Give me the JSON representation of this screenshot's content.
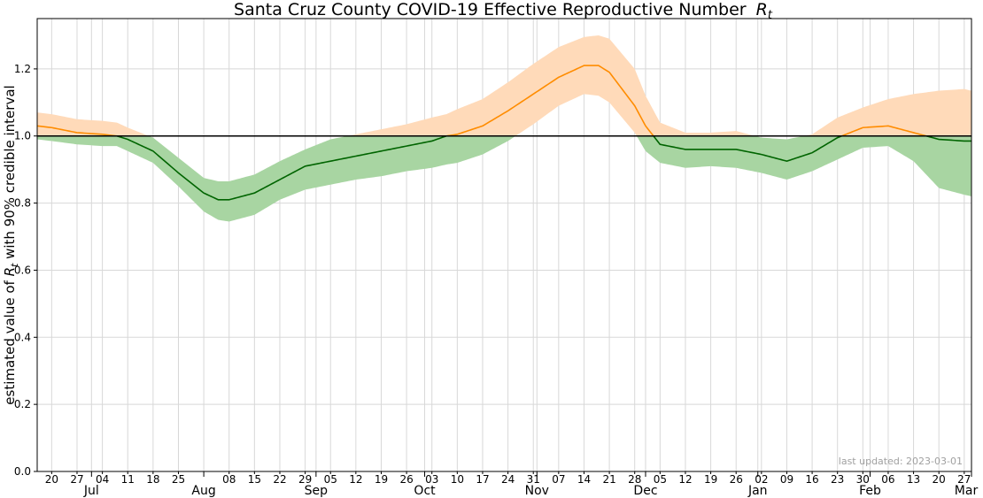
{
  "chart_data": {
    "type": "line",
    "title": "Santa Cruz County COVID-19 Effective Reproductive Number",
    "title_symbol": "R",
    "title_subscript": "t",
    "ylabel_prefix": "estimated value of ",
    "ylabel_symbol": "R",
    "ylabel_subscript": "t",
    "ylabel_suffix": " with 90% credible interval",
    "xlabel": "",
    "ylim": [
      0,
      1.35
    ],
    "yticks": [
      0.0,
      0.2,
      0.4,
      0.6,
      0.8,
      1.0,
      1.2
    ],
    "ytick_labels": [
      "0.0",
      "0.2",
      "0.4",
      "0.6",
      "0.8",
      "1.0",
      "1.2"
    ],
    "xlim": [
      "2022-06-16",
      "2023-03-01"
    ],
    "minor_ticks": [
      {
        "date": "2022-06-20",
        "label": "20"
      },
      {
        "date": "2022-06-27",
        "label": "27"
      },
      {
        "date": "2022-07-04",
        "label": "04"
      },
      {
        "date": "2022-07-11",
        "label": "11"
      },
      {
        "date": "2022-07-18",
        "label": "18"
      },
      {
        "date": "2022-07-25",
        "label": "25"
      },
      {
        "date": "2022-08-08",
        "label": "08"
      },
      {
        "date": "2022-08-15",
        "label": "15"
      },
      {
        "date": "2022-08-22",
        "label": "22"
      },
      {
        "date": "2022-08-29",
        "label": "29"
      },
      {
        "date": "2022-09-05",
        "label": "05"
      },
      {
        "date": "2022-09-12",
        "label": "12"
      },
      {
        "date": "2022-09-19",
        "label": "19"
      },
      {
        "date": "2022-09-26",
        "label": "26"
      },
      {
        "date": "2022-10-03",
        "label": "03"
      },
      {
        "date": "2022-10-10",
        "label": "10"
      },
      {
        "date": "2022-10-17",
        "label": "17"
      },
      {
        "date": "2022-10-24",
        "label": "24"
      },
      {
        "date": "2022-10-31",
        "label": "31"
      },
      {
        "date": "2022-11-07",
        "label": "07"
      },
      {
        "date": "2022-11-14",
        "label": "14"
      },
      {
        "date": "2022-11-21",
        "label": "21"
      },
      {
        "date": "2022-11-28",
        "label": "28"
      },
      {
        "date": "2022-12-05",
        "label": "05"
      },
      {
        "date": "2022-12-12",
        "label": "12"
      },
      {
        "date": "2022-12-19",
        "label": "19"
      },
      {
        "date": "2022-12-26",
        "label": "26"
      },
      {
        "date": "2023-01-02",
        "label": "02"
      },
      {
        "date": "2023-01-09",
        "label": "09"
      },
      {
        "date": "2023-01-16",
        "label": "16"
      },
      {
        "date": "2023-01-23",
        "label": "23"
      },
      {
        "date": "2023-01-30",
        "label": "30"
      },
      {
        "date": "2023-02-06",
        "label": "06"
      },
      {
        "date": "2023-02-13",
        "label": "13"
      },
      {
        "date": "2023-02-20",
        "label": "20"
      },
      {
        "date": "2023-02-27",
        "label": "27"
      }
    ],
    "month_ticks": [
      {
        "date": "2022-07-01",
        "label": "Jul"
      },
      {
        "date": "2022-08-01",
        "label": "Aug"
      },
      {
        "date": "2022-09-01",
        "label": "Sep"
      },
      {
        "date": "2022-10-01",
        "label": "Oct"
      },
      {
        "date": "2022-11-01",
        "label": "Nov"
      },
      {
        "date": "2022-12-01",
        "label": "Dec"
      },
      {
        "date": "2023-01-01",
        "label": "Jan"
      },
      {
        "date": "2023-02-01",
        "label": "Feb"
      },
      {
        "date": "2023-03-01",
        "label": "Mar"
      }
    ],
    "reference_line": 1.0,
    "grid": true,
    "series": [
      {
        "values_by_date": [
          [
            "2022-06-16",
            1.03,
            0.99,
            1.07
          ],
          [
            "2022-06-20",
            1.025,
            0.985,
            1.065
          ],
          [
            "2022-06-27",
            1.01,
            0.975,
            1.05
          ],
          [
            "2022-07-04",
            1.005,
            0.97,
            1.045
          ],
          [
            "2022-07-08",
            1.0,
            0.97,
            1.04
          ],
          [
            "2022-07-11",
            0.99,
            0.955,
            1.025
          ],
          [
            "2022-07-18",
            0.955,
            0.92,
            0.995
          ],
          [
            "2022-07-25",
            0.89,
            0.85,
            0.935
          ],
          [
            "2022-08-01",
            0.83,
            0.775,
            0.875
          ],
          [
            "2022-08-05",
            0.81,
            0.75,
            0.865
          ],
          [
            "2022-08-08",
            0.81,
            0.745,
            0.865
          ],
          [
            "2022-08-15",
            0.83,
            0.765,
            0.885
          ],
          [
            "2022-08-22",
            0.87,
            0.81,
            0.925
          ],
          [
            "2022-08-29",
            0.91,
            0.84,
            0.96
          ],
          [
            "2022-09-05",
            0.925,
            0.855,
            0.99
          ],
          [
            "2022-09-12",
            0.94,
            0.87,
            1.005
          ],
          [
            "2022-09-19",
            0.955,
            0.88,
            1.02
          ],
          [
            "2022-09-26",
            0.97,
            0.895,
            1.035
          ],
          [
            "2022-10-03",
            0.985,
            0.905,
            1.055
          ],
          [
            "2022-10-07",
            1.0,
            0.915,
            1.065
          ],
          [
            "2022-10-10",
            1.005,
            0.92,
            1.08
          ],
          [
            "2022-10-17",
            1.03,
            0.945,
            1.11
          ],
          [
            "2022-10-24",
            1.075,
            0.985,
            1.16
          ],
          [
            "2022-10-31",
            1.125,
            1.035,
            1.215
          ],
          [
            "2022-11-07",
            1.175,
            1.09,
            1.265
          ],
          [
            "2022-11-14",
            1.21,
            1.125,
            1.295
          ],
          [
            "2022-11-18",
            1.21,
            1.12,
            1.3
          ],
          [
            "2022-11-21",
            1.19,
            1.1,
            1.29
          ],
          [
            "2022-11-28",
            1.09,
            1.01,
            1.2
          ],
          [
            "2022-12-01",
            1.03,
            0.955,
            1.12
          ],
          [
            "2022-12-05",
            0.975,
            0.92,
            1.04
          ],
          [
            "2022-12-12",
            0.96,
            0.905,
            1.01
          ],
          [
            "2022-12-19",
            0.96,
            0.91,
            1.01
          ],
          [
            "2022-12-26",
            0.96,
            0.905,
            1.015
          ],
          [
            "2023-01-02",
            0.945,
            0.89,
            0.995
          ],
          [
            "2023-01-09",
            0.925,
            0.87,
            0.99
          ],
          [
            "2023-01-16",
            0.95,
            0.895,
            1.005
          ],
          [
            "2023-01-23",
            0.995,
            0.93,
            1.055
          ],
          [
            "2023-01-30",
            1.025,
            0.965,
            1.085
          ],
          [
            "2023-02-06",
            1.03,
            0.97,
            1.11
          ],
          [
            "2023-02-13",
            1.01,
            0.925,
            1.125
          ],
          [
            "2023-02-20",
            0.99,
            0.845,
            1.135
          ],
          [
            "2023-02-27",
            0.985,
            0.825,
            1.14
          ],
          [
            "2023-03-01",
            0.985,
            0.82,
            1.135
          ]
        ]
      }
    ],
    "colors": {
      "line_above": "#ff8c00",
      "line_below": "#006400",
      "band_above": "#ffdab9",
      "band_below": "#a8d5a2",
      "reference": "#000000",
      "grid": "#d8d8d8",
      "footnote": "#a0a0a0"
    },
    "footnote": "last updated: 2023-03-01"
  }
}
